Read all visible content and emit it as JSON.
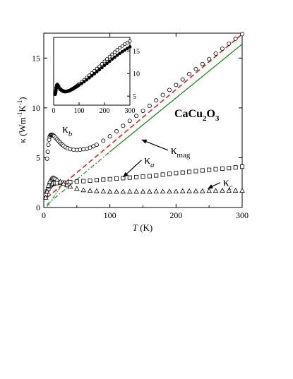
{
  "figure": {
    "compound_label": "CaCu2O3"
  },
  "chart_data": [
    {
      "id": "main",
      "type": "scatter",
      "xlabel": "T (K)",
      "ylabel": "κ (Wm⁻¹K⁻¹)",
      "xlim": [
        0,
        300
      ],
      "ylim": [
        0,
        17.5
      ],
      "xticks": [
        0,
        100,
        200,
        300
      ],
      "yticks": [
        0,
        5,
        10,
        15
      ],
      "grid": false,
      "legend": "none",
      "series": [
        {
          "name": "κb",
          "marker": "circle",
          "x": [
            5,
            6,
            7,
            8,
            9,
            10,
            11,
            12,
            13,
            14,
            15,
            16,
            18,
            20,
            22,
            24,
            26,
            28,
            30,
            33,
            36,
            40,
            45,
            50,
            55,
            60,
            65,
            70,
            75,
            80,
            90,
            100,
            110,
            120,
            130,
            140,
            150,
            160,
            170,
            180,
            190,
            200,
            210,
            220,
            230,
            240,
            250,
            260,
            270,
            280,
            290,
            300
          ],
          "y": [
            4.9,
            5.6,
            6.3,
            6.8,
            7.1,
            7.25,
            7.3,
            7.3,
            7.28,
            7.25,
            7.2,
            7.15,
            7.0,
            6.85,
            6.7,
            6.55,
            6.4,
            6.3,
            6.2,
            6.05,
            5.95,
            5.85,
            5.8,
            5.78,
            5.8,
            5.85,
            5.9,
            6.0,
            6.15,
            6.3,
            6.7,
            7.15,
            7.65,
            8.2,
            8.7,
            9.2,
            9.7,
            10.2,
            10.75,
            11.3,
            11.8,
            12.3,
            12.85,
            13.4,
            13.9,
            14.4,
            14.9,
            15.45,
            15.95,
            16.45,
            16.95,
            17.4
          ]
        },
        {
          "name": "κa",
          "marker": "square",
          "x": [
            3,
            5,
            7,
            9,
            11,
            13,
            15,
            17,
            20,
            25,
            30,
            40,
            50,
            60,
            70,
            80,
            90,
            100,
            110,
            120,
            130,
            140,
            150,
            160,
            170,
            180,
            190,
            200,
            210,
            220,
            230,
            240,
            250,
            260,
            270,
            280,
            290,
            300
          ],
          "y": [
            1.3,
            1.6,
            1.9,
            2.1,
            2.25,
            2.35,
            2.4,
            2.45,
            2.45,
            2.48,
            2.5,
            2.55,
            2.6,
            2.65,
            2.7,
            2.75,
            2.8,
            2.85,
            2.9,
            2.95,
            3.0,
            3.05,
            3.1,
            3.15,
            3.22,
            3.3,
            3.38,
            3.45,
            3.5,
            3.58,
            3.65,
            3.72,
            3.78,
            3.85,
            3.9,
            3.95,
            4.02,
            4.1
          ]
        },
        {
          "name": "κc",
          "marker": "triangle",
          "x": [
            3,
            5,
            7,
            9,
            11,
            13,
            15,
            17,
            20,
            25,
            30,
            35,
            40,
            50,
            60,
            70,
            80,
            90,
            100,
            110,
            120,
            130,
            140,
            150,
            160,
            170,
            180,
            190,
            200,
            210,
            220,
            230,
            240,
            250,
            260,
            270,
            280,
            290,
            300
          ],
          "y": [
            1.0,
            1.6,
            2.2,
            2.6,
            2.85,
            2.95,
            2.95,
            2.9,
            2.8,
            2.6,
            2.4,
            2.25,
            2.1,
            1.9,
            1.75,
            1.7,
            1.65,
            1.62,
            1.6,
            1.6,
            1.6,
            1.6,
            1.6,
            1.6,
            1.6,
            1.62,
            1.62,
            1.62,
            1.62,
            1.65,
            1.65,
            1.65,
            1.65,
            1.68,
            1.68,
            1.7,
            1.7,
            1.7,
            1.7
          ]
        },
        {
          "name": "κmag",
          "style": "line",
          "x": [
            100,
            300
          ],
          "y": [
            5.6,
            16.4
          ]
        },
        {
          "name": "",
          "style": "dash",
          "x": [
            5,
            300
          ],
          "y": [
            1.0,
            17.4
          ]
        },
        {
          "name": "",
          "style": "dash-dot",
          "x": [
            5,
            100
          ],
          "y": [
            0.3,
            5.6
          ]
        },
        {
          "name": "",
          "style": "dash-dot-dot",
          "x": [
            5,
            30
          ],
          "y": [
            0.1,
            2.5
          ]
        }
      ],
      "annotations": [
        {
          "id": "kappa-b",
          "symbol": "κ",
          "sub": "b",
          "at": [
            28,
            7.5
          ]
        },
        {
          "id": "kappa-a",
          "symbol": "κ",
          "sub": "a",
          "at": [
            152,
            4.4
          ],
          "arrow_to": [
            120,
            3.05
          ]
        },
        {
          "id": "kappa-c",
          "symbol": "κ",
          "sub": "c",
          "at": [
            271,
            2.15
          ],
          "arrow_to": [
            248,
            1.9
          ]
        },
        {
          "id": "kappa-mag",
          "symbol": "κ",
          "sub": "mag",
          "at": [
            192,
            5.4
          ],
          "arrow_to": [
            148,
            6.8
          ]
        }
      ]
    },
    {
      "id": "inset",
      "type": "scatter",
      "xlabel": "",
      "ylabel": "",
      "xlim": [
        0,
        300
      ],
      "ylim": [
        3,
        18
      ],
      "xticks": [
        0,
        100,
        200,
        300
      ],
      "yticks": [
        5,
        10,
        15
      ],
      "grid": false,
      "legend": "none",
      "series": [
        {
          "name": "",
          "marker": "open-circle",
          "x": [
            5,
            6,
            7,
            8,
            9,
            10,
            12,
            14,
            16,
            18,
            20,
            25,
            30,
            35,
            40,
            45,
            50,
            55,
            60,
            65,
            70,
            75,
            80,
            85,
            90,
            95,
            100,
            110,
            120,
            130,
            140,
            150,
            160,
            170,
            180,
            190,
            200,
            210,
            220,
            230,
            240,
            250,
            260,
            270,
            280,
            290,
            300
          ],
          "y": [
            5.5,
            5.5,
            5.7,
            6.0,
            6.4,
            6.9,
            7.4,
            7.6,
            7.5,
            7.3,
            7.1,
            6.7,
            6.4,
            6.2,
            6.1,
            6.0,
            6.05,
            6.1,
            6.2,
            6.3,
            6.5,
            6.65,
            6.85,
            7.05,
            7.25,
            7.45,
            7.7,
            8.15,
            8.6,
            9.1,
            9.6,
            10.1,
            10.6,
            11.1,
            11.6,
            12.15,
            12.7,
            13.2,
            13.75,
            14.25,
            14.75,
            15.25,
            15.7,
            16.1,
            16.5,
            16.85,
            17.2
          ]
        },
        {
          "name": "",
          "marker": "filled-circle",
          "x": [
            5,
            6,
            7,
            8,
            9,
            10,
            12,
            14,
            16,
            18,
            20,
            25,
            30,
            35,
            40,
            45,
            50,
            55,
            60,
            65,
            70,
            75,
            80,
            85,
            90,
            95,
            100,
            110,
            120,
            130,
            140,
            150,
            160,
            170,
            180,
            190,
            200,
            210,
            220,
            230,
            240,
            250,
            260,
            270,
            280,
            290,
            300
          ],
          "y": [
            5.4,
            5.4,
            5.6,
            5.9,
            6.3,
            6.8,
            7.3,
            7.4,
            7.3,
            7.1,
            6.9,
            6.5,
            6.3,
            6.1,
            6.0,
            5.95,
            6.0,
            6.05,
            6.15,
            6.25,
            6.4,
            6.55,
            6.7,
            6.9,
            7.05,
            7.25,
            7.45,
            7.8,
            8.2,
            8.6,
            9.05,
            9.5,
            9.95,
            10.4,
            10.85,
            11.3,
            11.8,
            12.25,
            12.7,
            13.2,
            13.6,
            14.05,
            14.45,
            14.85,
            15.2,
            15.55,
            15.9
          ]
        }
      ]
    }
  ]
}
